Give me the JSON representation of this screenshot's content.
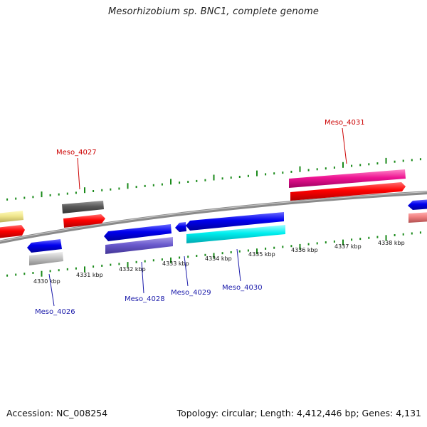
{
  "title": "Mesorhizobium sp. BNC1, complete genome",
  "footer": {
    "accession": "Accession: NC_008254",
    "summary": "Topology: circular; Length: 4,412,446 bp; Genes: 4,131"
  },
  "ticks": [
    "4330 kbp",
    "4331 kbp",
    "4332 kbp",
    "4333 kbp",
    "4334 kbp",
    "4335 kbp",
    "4336 kbp",
    "4337 kbp",
    "4338 kbp"
  ],
  "labels": {
    "meso_4026": "Meso_4026",
    "meso_4027": "Meso_4027",
    "meso_4028": "Meso_4028",
    "meso_4029": "Meso_4029",
    "meso_4030": "Meso_4030",
    "meso_4031": "Meso_4031"
  },
  "colors": {
    "forward_label": "#cc0000",
    "reverse_label": "#1a1aaa",
    "backbone": "#888888",
    "ticks": "#1a8a1a"
  }
}
